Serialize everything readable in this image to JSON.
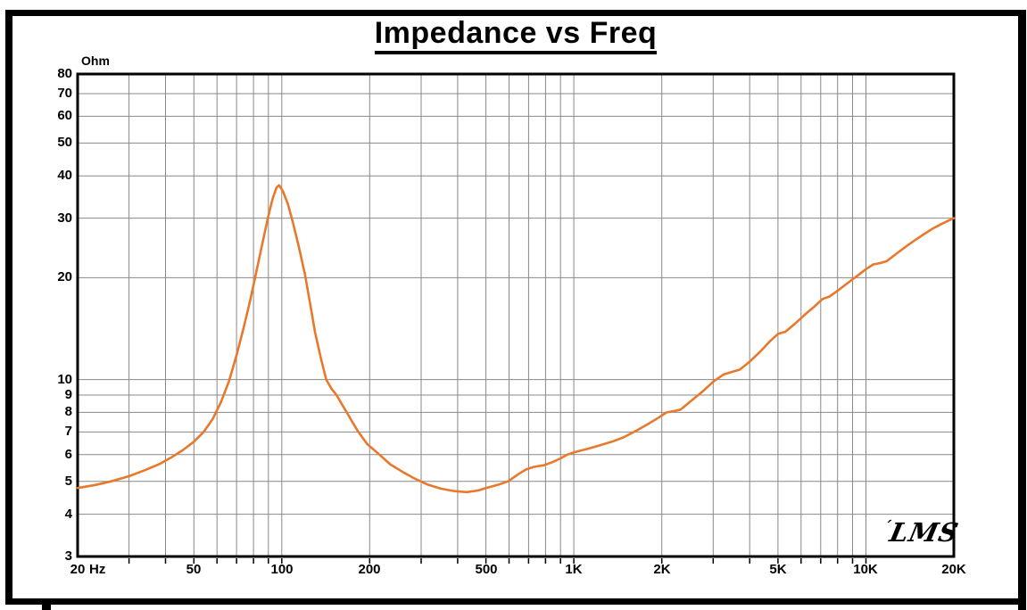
{
  "window": {
    "background": "#ffffff",
    "frame_color": "#000000"
  },
  "branding": {
    "logo_text": "LMS"
  },
  "chart_data": {
    "type": "line",
    "title": "Impedance vs Freq",
    "ylabel": "Ohm",
    "x_unit_label": "Hz",
    "x_scale": "log",
    "y_scale": "log",
    "xlim": [
      20,
      20000
    ],
    "ylim": [
      3,
      80
    ],
    "grid": true,
    "grid_color": "#888888",
    "axis_color": "#000000",
    "x_ticks": [
      {
        "f": 20,
        "label": "20"
      },
      {
        "f": 50,
        "label": "50"
      },
      {
        "f": 100,
        "label": "100"
      },
      {
        "f": 200,
        "label": "200"
      },
      {
        "f": 500,
        "label": "500"
      },
      {
        "f": 1000,
        "label": "1K"
      },
      {
        "f": 2000,
        "label": "2K"
      },
      {
        "f": 5000,
        "label": "5K"
      },
      {
        "f": 10000,
        "label": "10K"
      },
      {
        "f": 20000,
        "label": "20K"
      }
    ],
    "x_gridlines": [
      30,
      40,
      50,
      60,
      70,
      80,
      90,
      100,
      200,
      300,
      400,
      500,
      600,
      700,
      800,
      900,
      1000,
      2000,
      3000,
      4000,
      5000,
      6000,
      7000,
      8000,
      9000,
      10000
    ],
    "y_ticks": [
      80,
      70,
      60,
      50,
      40,
      30,
      20,
      10,
      9,
      8,
      7,
      6,
      5,
      4,
      3
    ],
    "y_gridlines": [
      4,
      5,
      6,
      7,
      8,
      9,
      10,
      20,
      30,
      40,
      50,
      60,
      70
    ],
    "series": [
      {
        "name": "impedance",
        "color": "#e8792c",
        "peak": {
          "freq_hz": 96,
          "ohm": 37.5
        },
        "minimum": {
          "freq_hz": 420,
          "ohm": 4.65
        },
        "points": [
          [
            20,
            4.78
          ],
          [
            23,
            4.88
          ],
          [
            26,
            5.0
          ],
          [
            30,
            5.18
          ],
          [
            34,
            5.4
          ],
          [
            38,
            5.62
          ],
          [
            42,
            5.9
          ],
          [
            46,
            6.2
          ],
          [
            50,
            6.55
          ],
          [
            54,
            7.0
          ],
          [
            58,
            7.65
          ],
          [
            62,
            8.6
          ],
          [
            66,
            9.9
          ],
          [
            70,
            11.8
          ],
          [
            74,
            14.2
          ],
          [
            78,
            17.2
          ],
          [
            82,
            21.0
          ],
          [
            86,
            25.5
          ],
          [
            90,
            30.5
          ],
          [
            93,
            34.2
          ],
          [
            96,
            37.0
          ],
          [
            98,
            37.5
          ],
          [
            101,
            36.0
          ],
          [
            105,
            33.0
          ],
          [
            109,
            29.3
          ],
          [
            114,
            25.0
          ],
          [
            120,
            20.5
          ],
          [
            125,
            16.8
          ],
          [
            130,
            13.8
          ],
          [
            136,
            11.6
          ],
          [
            142,
            10.0
          ],
          [
            148,
            9.4
          ],
          [
            154,
            9.0
          ],
          [
            160,
            8.5
          ],
          [
            167,
            8.0
          ],
          [
            175,
            7.45
          ],
          [
            183,
            7.0
          ],
          [
            196,
            6.45
          ],
          [
            216,
            6.0
          ],
          [
            235,
            5.62
          ],
          [
            258,
            5.35
          ],
          [
            285,
            5.1
          ],
          [
            315,
            4.9
          ],
          [
            350,
            4.76
          ],
          [
            390,
            4.68
          ],
          [
            430,
            4.65
          ],
          [
            470,
            4.7
          ],
          [
            500,
            4.78
          ],
          [
            555,
            4.9
          ],
          [
            595,
            5.0
          ],
          [
            645,
            5.25
          ],
          [
            685,
            5.42
          ],
          [
            730,
            5.52
          ],
          [
            790,
            5.58
          ],
          [
            845,
            5.7
          ],
          [
            900,
            5.85
          ],
          [
            950,
            6.0
          ],
          [
            1020,
            6.12
          ],
          [
            1120,
            6.25
          ],
          [
            1230,
            6.4
          ],
          [
            1350,
            6.55
          ],
          [
            1480,
            6.75
          ],
          [
            1630,
            7.05
          ],
          [
            1800,
            7.4
          ],
          [
            1950,
            7.72
          ],
          [
            2080,
            8.0
          ],
          [
            2200,
            8.07
          ],
          [
            2320,
            8.15
          ],
          [
            2500,
            8.6
          ],
          [
            2750,
            9.2
          ],
          [
            3000,
            9.85
          ],
          [
            3250,
            10.35
          ],
          [
            3500,
            10.55
          ],
          [
            3700,
            10.7
          ],
          [
            4000,
            11.3
          ],
          [
            4350,
            12.1
          ],
          [
            4700,
            13.0
          ],
          [
            5000,
            13.65
          ],
          [
            5300,
            13.85
          ],
          [
            5700,
            14.6
          ],
          [
            6200,
            15.6
          ],
          [
            6700,
            16.5
          ],
          [
            7100,
            17.3
          ],
          [
            7500,
            17.6
          ],
          [
            8000,
            18.3
          ],
          [
            8600,
            19.2
          ],
          [
            9300,
            20.2
          ],
          [
            10000,
            21.2
          ],
          [
            10600,
            21.9
          ],
          [
            11200,
            22.1
          ],
          [
            11800,
            22.4
          ],
          [
            12600,
            23.4
          ],
          [
            13600,
            24.6
          ],
          [
            14700,
            25.8
          ],
          [
            15800,
            26.9
          ],
          [
            17000,
            28.0
          ],
          [
            18400,
            29.0
          ],
          [
            20000,
            30.0
          ]
        ]
      }
    ]
  }
}
